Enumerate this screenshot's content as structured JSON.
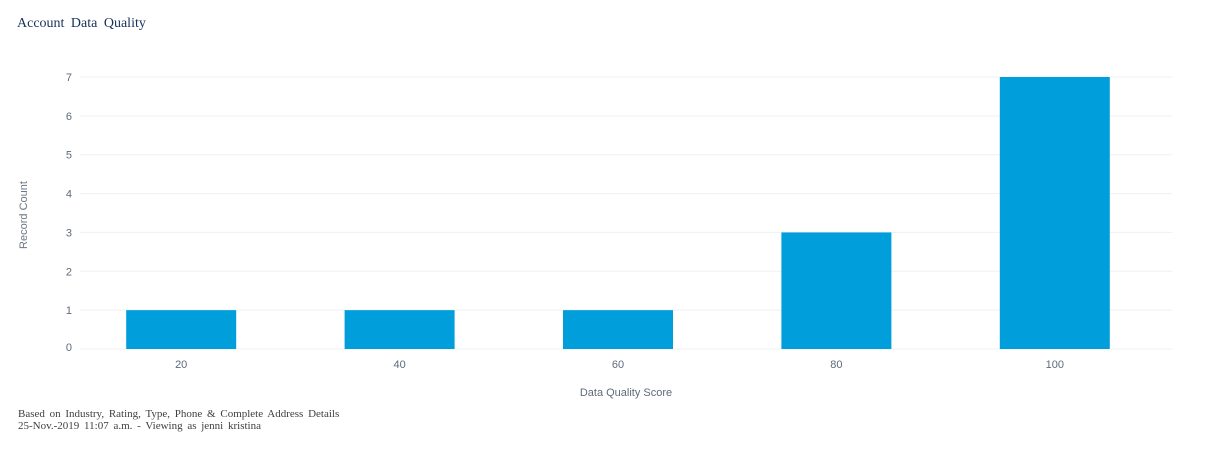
{
  "report": {
    "title": "Account Data Quality",
    "footer_line1": "Based on Industry, Rating, Type, Phone & Complete Address Details",
    "footer_line2": "25-Nov.-2019 11:07 a.m. - Viewing as jenni kristina"
  },
  "colors": {
    "bar": "#009edb",
    "grid": "#eef0f3",
    "axis_text": "#5e6b7b",
    "axis_title": "#6b7785"
  },
  "chart_data": {
    "type": "bar",
    "categories": [
      "20",
      "40",
      "60",
      "80",
      "100"
    ],
    "values": [
      1,
      1,
      1,
      3,
      7
    ],
    "xlabel": "Data Quality Score",
    "ylabel": "Record Count",
    "ylim": [
      0,
      7
    ],
    "yticks": [
      0,
      1,
      2,
      3,
      4,
      5,
      6,
      7
    ],
    "grid": true,
    "legend": "none"
  }
}
